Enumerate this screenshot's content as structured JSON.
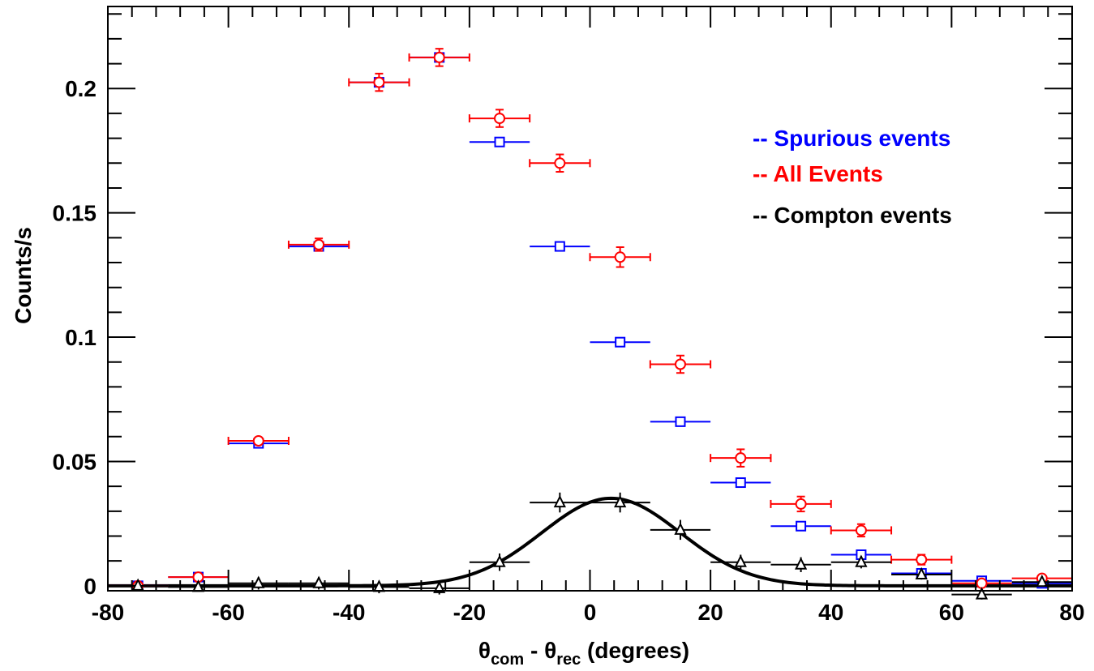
{
  "chart_data": {
    "type": "scatter",
    "xlim": [
      -80,
      80
    ],
    "ylim": [
      -0.002,
      0.233
    ],
    "xlabel": {
      "theta": "θ",
      "sub1": "com",
      "minus": " - ",
      "sub2": "rec",
      "suffix": " (degrees)"
    },
    "ylabel": "Counts/s",
    "x_ticks": [
      {
        "value": -80,
        "label": "-80"
      },
      {
        "value": -60,
        "label": "-60"
      },
      {
        "value": -40,
        "label": "-40"
      },
      {
        "value": -20,
        "label": "-20"
      },
      {
        "value": 0,
        "label": "0"
      },
      {
        "value": 20,
        "label": "20"
      },
      {
        "value": 40,
        "label": "40"
      },
      {
        "value": 60,
        "label": "60"
      },
      {
        "value": 80,
        "label": "80"
      }
    ],
    "y_ticks": [
      {
        "value": 0,
        "label": "0"
      },
      {
        "value": 0.05,
        "label": "0.05"
      },
      {
        "value": 0.1,
        "label": "0.1"
      },
      {
        "value": 0.15,
        "label": "0.15"
      },
      {
        "value": 0.2,
        "label": "0.2"
      }
    ],
    "grid": false,
    "legend_position": "top-right",
    "bin_half_width": 5,
    "series": [
      {
        "name": "-- Spurious events",
        "color": "#0000ff",
        "marker": "square",
        "x": [
          -75,
          -65,
          -55,
          -45,
          -35,
          -25,
          -15,
          -5,
          5,
          15,
          25,
          35,
          45,
          55,
          65,
          75
        ],
        "y": [
          0.0,
          0.0035,
          0.0573,
          0.1365,
          0.2025,
          0.2125,
          0.1785,
          0.1365,
          0.098,
          0.066,
          0.0415,
          0.024,
          0.0125,
          0.005,
          0.002,
          0.001
        ],
        "yerr": [
          0.0,
          0.0,
          0.0,
          0.0,
          0.0,
          0.0,
          0.0,
          0.0,
          0.0,
          0.0,
          0.0,
          0.0,
          0.0,
          0.0,
          0.0,
          0.0
        ]
      },
      {
        "name": "-- All Events",
        "color": "#ff0000",
        "marker": "circle",
        "x": [
          -75,
          -65,
          -55,
          -45,
          -35,
          -25,
          -15,
          -5,
          5,
          15,
          25,
          35,
          45,
          55,
          65,
          75
        ],
        "y": [
          0.0,
          0.0035,
          0.0583,
          0.1372,
          0.2025,
          0.2125,
          0.188,
          0.17,
          0.1322,
          0.0891,
          0.0514,
          0.0329,
          0.0223,
          0.0105,
          0.001,
          0.003
        ],
        "yerr": [
          0.0,
          0.0,
          0.001,
          0.0025,
          0.0035,
          0.0035,
          0.0035,
          0.0035,
          0.004,
          0.0035,
          0.0035,
          0.003,
          0.0025,
          0.002,
          0.0,
          0.0
        ]
      },
      {
        "name": "-- Compton events",
        "color": "#000000",
        "marker": "triangle",
        "x": [
          -75,
          -65,
          -55,
          -45,
          -35,
          -25,
          -15,
          -5,
          5,
          15,
          25,
          35,
          45,
          55,
          65,
          75
        ],
        "y": [
          0.0,
          -0.0005,
          0.001,
          0.001,
          -0.0005,
          -0.001,
          0.0095,
          0.0335,
          0.0335,
          0.0225,
          0.0095,
          0.0085,
          0.0095,
          0.0045,
          -0.0035,
          0.0015
        ],
        "yerr": [
          0.0,
          0.0,
          0.0025,
          0.0025,
          0.0025,
          0.0025,
          0.0035,
          0.004,
          0.004,
          0.004,
          0.003,
          0.003,
          0.0025,
          0.002,
          0.002,
          0.0015
        ]
      }
    ],
    "fit": {
      "type": "gaussian",
      "color": "#000000",
      "amplitude": 0.0352,
      "mean": 3.5,
      "sigma": 11.5
    }
  }
}
